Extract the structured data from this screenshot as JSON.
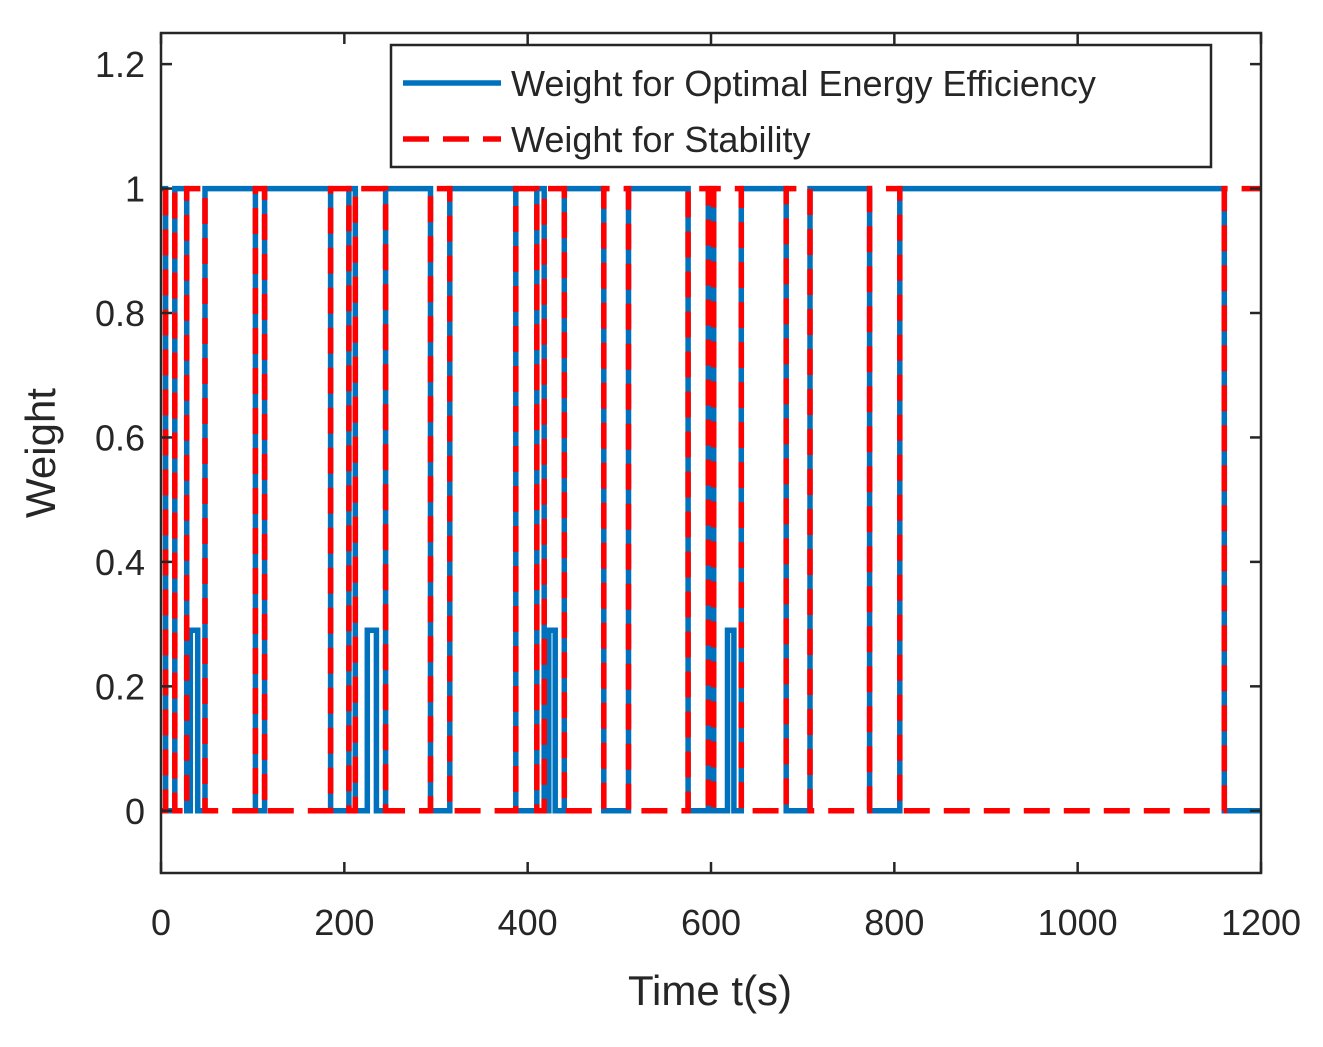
{
  "chart_data": {
    "type": "line",
    "x_label": "Time  t(s)",
    "y_label": "Weight",
    "x": [
      0,
      5,
      5,
      15,
      15,
      28,
      28,
      32,
      32,
      40,
      40,
      48,
      48,
      103,
      103,
      113,
      113,
      185,
      185,
      205,
      205,
      212,
      212,
      225,
      225,
      235,
      235,
      245,
      245,
      294,
      294,
      315,
      315,
      387,
      387,
      410,
      410,
      418,
      418,
      423,
      423,
      430,
      430,
      440,
      440,
      483,
      483,
      510,
      510,
      575,
      575,
      597,
      597,
      603,
      603,
      618,
      618,
      625,
      625,
      633,
      633,
      682,
      682,
      708,
      708,
      773,
      773,
      806,
      806,
      1160,
      1160,
      1200
    ],
    "series": [
      {
        "name": "Weight for Optimal Energy Efficiency",
        "color": "#0072bd",
        "dash": false,
        "values": [
          1,
          1,
          0,
          0,
          1,
          1,
          0,
          0,
          0.29,
          0.29,
          0,
          0,
          1,
          1,
          0,
          0,
          1,
          1,
          0,
          0,
          1,
          1,
          0,
          0,
          0.29,
          0.29,
          0,
          0,
          1,
          1,
          0,
          0,
          1,
          1,
          0,
          0,
          1,
          1,
          0,
          0,
          0.29,
          0.29,
          0,
          0,
          1,
          1,
          0,
          0,
          1,
          1,
          0,
          0,
          1,
          1,
          0,
          0,
          0.29,
          0.29,
          0,
          0,
          1,
          1,
          0,
          0,
          1,
          1,
          0,
          0,
          1,
          1,
          0,
          0
        ]
      },
      {
        "name": "Weight for Stability",
        "color": "#ff0000",
        "dash": true,
        "values": [
          0,
          0,
          1,
          1,
          0,
          0,
          1,
          1,
          1,
          1,
          1,
          1,
          0,
          0,
          1,
          1,
          0,
          0,
          1,
          1,
          0,
          0,
          1,
          1,
          1,
          1,
          1,
          1,
          0,
          0,
          1,
          1,
          0,
          0,
          1,
          1,
          0,
          0,
          1,
          1,
          1,
          1,
          1,
          1,
          0,
          0,
          1,
          1,
          0,
          0,
          1,
          1,
          0,
          0,
          1,
          1,
          1,
          1,
          1,
          1,
          0,
          0,
          1,
          1,
          0,
          0,
          1,
          1,
          0,
          0,
          1,
          1
        ]
      }
    ],
    "xlim": [
      0,
      1200
    ],
    "xticks": [
      0,
      200,
      400,
      600,
      800,
      1000,
      1200
    ],
    "ylim": [
      -0.1,
      1.25
    ],
    "yticks": [
      0,
      0.2,
      0.4,
      0.6,
      0.8,
      1,
      1.2
    ],
    "legend": "top-right",
    "grid": false
  }
}
